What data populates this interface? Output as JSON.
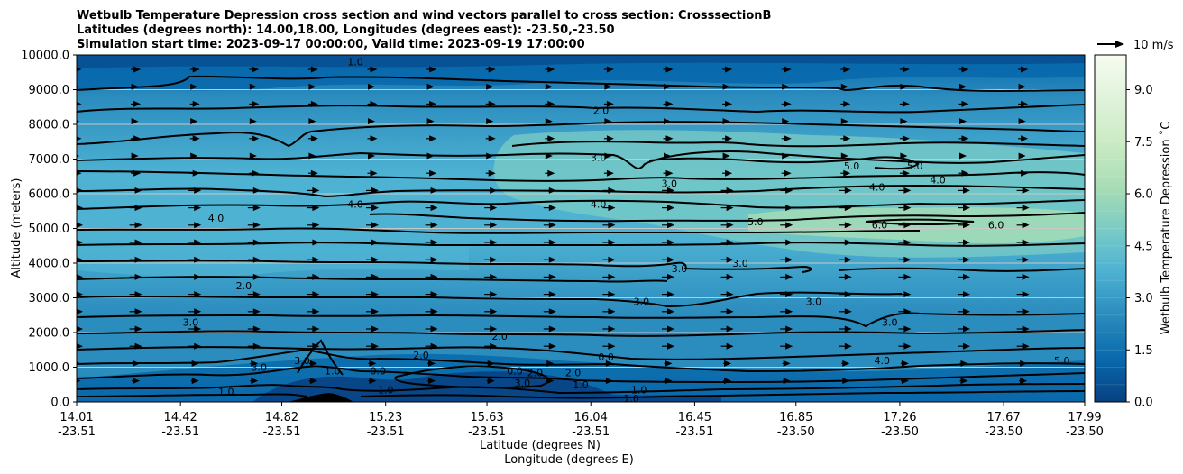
{
  "chart_data": {
    "type": "heatmap",
    "title_lines": [
      "Wetbulb Temperature Depression cross section and wind vectors parallel to cross section: CrosssectionB",
      "Latitudes (degrees north): 14.00,18.00, Longitudes (degrees east): -23.50,-23.50",
      "Simulation start time: 2023-09-17 00:00:00, Valid time: 2023-09-19 17:00:00"
    ],
    "xlabel_1": "Latitude (degrees N)",
    "xlabel_2": "Longitude (degrees E)",
    "ylabel": "Altitude (meters)",
    "colorbar_label": "Wetbulb Temperature Depression ˚C",
    "quiver_key_label": "10 m/s",
    "x_ticks_lat": [
      "14.01",
      "14.42",
      "14.82",
      "15.23",
      "15.63",
      "16.04",
      "16.45",
      "16.85",
      "17.26",
      "17.67",
      "17.99"
    ],
    "x_ticks_lon": [
      "-23.51",
      "-23.51",
      "-23.51",
      "-23.51",
      "-23.51",
      "-23.51",
      "-23.51",
      "-23.50",
      "-23.50",
      "-23.50",
      "-23.50"
    ],
    "y_ticks": [
      "0.0",
      "1000.0",
      "2000.0",
      "3000.0",
      "4000.0",
      "5000.0",
      "6000.0",
      "7000.0",
      "8000.0",
      "9000.0",
      "10000.0"
    ],
    "y_range": [
      0,
      10000
    ],
    "colorbar_ticks": [
      "0.0",
      "1.5",
      "3.0",
      "4.5",
      "6.0",
      "7.5",
      "9.0"
    ],
    "colorbar_range": [
      0,
      10
    ],
    "colors": [
      "#084081",
      "#0868ac",
      "#2b8cbe",
      "#4eb3d3",
      "#7bccc4",
      "#a8ddb5",
      "#ccebc5",
      "#e0f3db",
      "#f7fcf0"
    ],
    "grid": "horizontal",
    "contour_labels": [
      {
        "text": "2.0",
        "lat": 16.08,
        "alt": 8400
      },
      {
        "text": "3.0",
        "lat": 16.07,
        "alt": 7050
      },
      {
        "text": "4.0",
        "lat": 16.07,
        "alt": 5700
      },
      {
        "text": "1.0",
        "lat": 15.11,
        "alt": 9800
      },
      {
        "text": "4.0",
        "lat": 14.56,
        "alt": 5300
      },
      {
        "text": "4.0",
        "lat": 15.11,
        "alt": 5700
      },
      {
        "text": "3.0",
        "lat": 16.35,
        "alt": 6300
      },
      {
        "text": "5.0",
        "lat": 17.07,
        "alt": 6800
      },
      {
        "text": "5.0",
        "lat": 17.32,
        "alt": 6800
      },
      {
        "text": "4.0",
        "lat": 17.17,
        "alt": 6200
      },
      {
        "text": "4.0",
        "lat": 17.41,
        "alt": 6400
      },
      {
        "text": "5.0",
        "lat": 16.69,
        "alt": 5200
      },
      {
        "text": "6.0",
        "lat": 17.18,
        "alt": 5100
      },
      {
        "text": "6.0",
        "lat": 17.64,
        "alt": 5100
      },
      {
        "text": "3.0",
        "lat": 16.39,
        "alt": 3850
      },
      {
        "text": "3.0",
        "lat": 16.63,
        "alt": 4000
      },
      {
        "text": "3.0",
        "lat": 16.92,
        "alt": 2900
      },
      {
        "text": "3.0",
        "lat": 17.22,
        "alt": 2300
      },
      {
        "text": "3.0",
        "lat": 16.24,
        "alt": 2900
      },
      {
        "text": "2.0",
        "lat": 14.67,
        "alt": 3350
      },
      {
        "text": "3.0",
        "lat": 14.46,
        "alt": 2300
      },
      {
        "text": "2.0",
        "lat": 15.68,
        "alt": 1900
      },
      {
        "text": "2.0",
        "lat": 15.37,
        "alt": 1350
      },
      {
        "text": "3.0",
        "lat": 14.73,
        "alt": 1000
      },
      {
        "text": "3.0",
        "lat": 14.9,
        "alt": 1200
      },
      {
        "text": "1.0",
        "lat": 15.02,
        "alt": 900
      },
      {
        "text": "0.0",
        "lat": 15.2,
        "alt": 900
      },
      {
        "text": "0.0",
        "lat": 15.74,
        "alt": 900
      },
      {
        "text": "2.0",
        "lat": 15.97,
        "alt": 850
      },
      {
        "text": "1.0",
        "lat": 16.0,
        "alt": 500
      },
      {
        "text": "2.0",
        "lat": 15.82,
        "alt": 850
      },
      {
        "text": "3.0",
        "lat": 15.77,
        "alt": 550
      },
      {
        "text": "0.0",
        "lat": 16.1,
        "alt": 1300
      },
      {
        "text": "1.0",
        "lat": 16.23,
        "alt": 350
      },
      {
        "text": "1.0",
        "lat": 16.2,
        "alt": 100
      },
      {
        "text": "1.0",
        "lat": 15.23,
        "alt": 350
      },
      {
        "text": "1.0",
        "lat": 14.6,
        "alt": 300
      },
      {
        "text": "4.0",
        "lat": 17.19,
        "alt": 1200
      },
      {
        "text": "5.0",
        "lat": 17.9,
        "alt": 1200
      }
    ]
  }
}
